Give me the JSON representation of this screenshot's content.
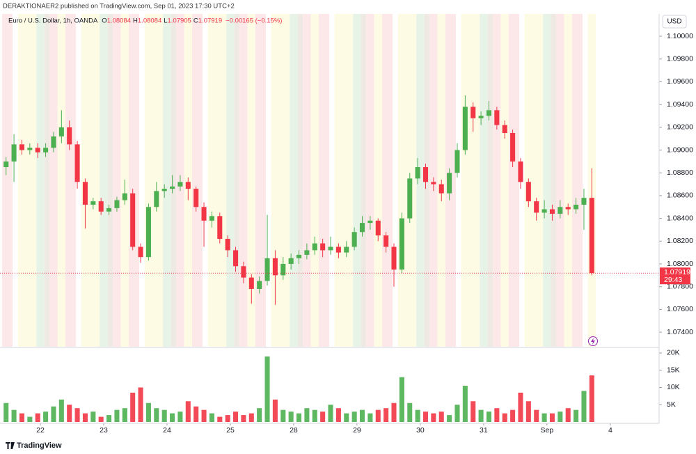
{
  "header": {
    "publisher": "DERAKTIONAER2 published on TradingView.com, Sep 01, 2023 17:30 UTC+2"
  },
  "legend": {
    "symbol": "Euro / U.S. Dollar, 1h, OANDA",
    "ohlc": [
      {
        "label": "O",
        "value": "1.08084"
      },
      {
        "label": "H",
        "value": "1.08084"
      },
      {
        "label": "L",
        "value": "1.07905"
      },
      {
        "label": "C",
        "value": "1.07919"
      }
    ],
    "change": "−0.00165 (−0.15%)"
  },
  "currency": "USD",
  "footer": "TradingView",
  "chart_data": {
    "type": "candlestick",
    "up_color": "#4caf50",
    "down_color": "#f23645",
    "x": [
      11,
      14,
      17,
      20,
      23,
      26,
      29,
      32,
      35,
      38,
      41,
      44,
      47,
      50,
      53,
      56,
      59,
      62,
      65,
      68,
      71,
      74,
      77,
      80,
      83,
      86,
      89,
      92,
      95,
      98,
      101,
      104,
      107,
      110,
      113,
      116,
      119,
      122,
      125,
      128,
      131,
      134,
      137,
      140,
      143,
      146,
      149,
      152,
      155,
      158,
      161,
      164,
      167,
      170,
      173,
      176,
      179,
      182,
      185,
      188,
      191,
      194,
      197,
      200,
      203,
      206,
      209,
      212,
      215,
      218,
      221,
      224,
      227,
      230,
      233
    ],
    "open": [
      1.0885,
      1.089,
      1.0905,
      1.09,
      1.0902,
      1.0898,
      1.0902,
      1.0912,
      1.092,
      1.0905,
      1.0872,
      1.0852,
      1.0855,
      1.0846,
      1.0849,
      1.0856,
      1.0862,
      1.0815,
      1.0806,
      1.085,
      1.0864,
      1.0866,
      1.0868,
      1.0872,
      1.0866,
      1.085,
      1.0838,
      1.0842,
      1.0822,
      1.0812,
      1.0798,
      1.0788,
      1.0778,
      1.0785,
      1.0805,
      1.079,
      1.08,
      1.0805,
      1.0808,
      1.0812,
      1.0818,
      1.0812,
      1.0815,
      1.081,
      1.0815,
      1.0828,
      1.0836,
      1.0838,
      1.0825,
      1.0815,
      1.0795,
      1.084,
      1.0875,
      1.0885,
      1.0872,
      1.087,
      1.0862,
      1.088,
      1.09,
      1.0938,
      1.0928,
      1.093,
      1.0935,
      1.0922,
      1.0915,
      1.089,
      1.0872,
      1.0855,
      1.0845,
      1.0848,
      1.0844,
      1.085,
      1.0848,
      1.0852,
      1.0858
    ],
    "high": [
      1.0894,
      1.0914,
      1.0909,
      1.0906,
      1.0906,
      1.0906,
      1.0916,
      1.0935,
      1.0926,
      1.0908,
      1.0875,
      1.0858,
      1.0858,
      1.0852,
      1.0859,
      1.0874,
      1.0866,
      1.0818,
      1.0853,
      1.0872,
      1.087,
      1.0878,
      1.0878,
      1.0876,
      1.0868,
      1.0854,
      1.0846,
      1.0845,
      1.0825,
      1.0815,
      1.0802,
      1.0791,
      1.0789,
      1.0843,
      1.0812,
      1.0806,
      1.0809,
      1.0812,
      1.0818,
      1.0824,
      1.0822,
      1.0824,
      1.0818,
      1.082,
      1.0832,
      1.0842,
      1.0842,
      1.084,
      1.0828,
      1.0818,
      1.0845,
      1.088,
      1.0893,
      1.0888,
      1.0876,
      1.0874,
      1.0884,
      1.0906,
      1.0948,
      1.0942,
      1.0934,
      1.0943,
      1.0938,
      1.0926,
      1.0918,
      1.0893,
      1.0875,
      1.0858,
      1.0856,
      1.0852,
      1.0856,
      1.0853,
      1.0858,
      1.0866,
      1.0884
    ],
    "low": [
      1.0878,
      1.0872,
      1.0896,
      1.0896,
      1.0893,
      1.0894,
      1.0898,
      1.0906,
      1.09,
      1.0866,
      1.0831,
      1.0848,
      1.0843,
      1.0843,
      1.0846,
      1.0852,
      1.0812,
      1.0801,
      1.0803,
      1.0846,
      1.0858,
      1.0862,
      1.0864,
      1.0856,
      1.0846,
      1.0815,
      1.0832,
      1.0818,
      1.0806,
      1.0793,
      1.0783,
      1.0765,
      1.0774,
      1.0781,
      1.0764,
      1.0786,
      1.0795,
      1.08,
      1.0804,
      1.0808,
      1.0806,
      1.0808,
      1.0805,
      1.0806,
      1.0812,
      1.0824,
      1.083,
      1.082,
      1.081,
      1.078,
      1.0792,
      1.0836,
      1.087,
      1.0866,
      1.0864,
      1.0855,
      1.0856,
      1.0876,
      1.0896,
      1.0916,
      1.0922,
      1.0926,
      1.0918,
      1.091,
      1.0885,
      1.0866,
      1.085,
      1.0838,
      1.084,
      1.0838,
      1.084,
      1.0843,
      1.0844,
      1.083,
      1.079
    ],
    "close": [
      1.089,
      1.0905,
      1.09,
      1.0902,
      1.0898,
      1.0902,
      1.0912,
      1.092,
      1.0905,
      1.0872,
      1.0852,
      1.0855,
      1.0846,
      1.0849,
      1.0856,
      1.0862,
      1.0815,
      1.0806,
      1.085,
      1.0864,
      1.0866,
      1.0868,
      1.0872,
      1.0866,
      1.085,
      1.0838,
      1.0842,
      1.0822,
      1.0812,
      1.0798,
      1.0788,
      1.0778,
      1.0785,
      1.0805,
      1.079,
      1.08,
      1.0805,
      1.0808,
      1.0812,
      1.0818,
      1.0812,
      1.0815,
      1.081,
      1.0815,
      1.0828,
      1.0836,
      1.0838,
      1.0825,
      1.0815,
      1.0795,
      1.084,
      1.0875,
      1.0885,
      1.0872,
      1.087,
      1.0862,
      1.088,
      1.09,
      1.0938,
      1.0928,
      1.093,
      1.0935,
      1.0922,
      1.0915,
      1.089,
      1.0872,
      1.0855,
      1.0845,
      1.0848,
      1.0844,
      1.085,
      1.0848,
      1.0852,
      1.0858,
      1.0792
    ],
    "volume": [
      5500,
      3500,
      2500,
      1500,
      2500,
      3000,
      4500,
      6500,
      5000,
      4000,
      2500,
      3000,
      1500,
      2000,
      3500,
      4000,
      8500,
      10000,
      5500,
      4000,
      3500,
      2500,
      3000,
      6000,
      4500,
      3500,
      2500,
      1500,
      2000,
      3000,
      2000,
      2500,
      4000,
      19000,
      6500,
      3500,
      3000,
      2500,
      4000,
      3500,
      3000,
      5000,
      4000,
      2500,
      3000,
      3500,
      2500,
      3500,
      4000,
      5500,
      13000,
      5500,
      3500,
      3000,
      2500,
      3000,
      2000,
      5000,
      10500,
      6000,
      3500,
      3000,
      4000,
      2500,
      3500,
      8500,
      6000,
      3500,
      2500,
      2500,
      3000,
      4000,
      3500,
      9000,
      13500
    ],
    "xlim": [
      8.7,
      258.5
    ],
    "xticks": [
      {
        "value": 24,
        "label": "22"
      },
      {
        "value": 48,
        "label": "23"
      },
      {
        "value": 72,
        "label": "24"
      },
      {
        "value": 96,
        "label": "25"
      },
      {
        "value": 120,
        "label": "28"
      },
      {
        "value": 144,
        "label": "29"
      },
      {
        "value": 168,
        "label": "30"
      },
      {
        "value": 192,
        "label": "31"
      },
      {
        "value": 216,
        "label": "Sep"
      },
      {
        "value": 240,
        "label": "4"
      }
    ],
    "ylim": [
      1.07272,
      1.10196
    ],
    "yticks": [
      {
        "value": 1.074,
        "label": "1.07400"
      },
      {
        "value": 1.076,
        "label": "1.07600"
      },
      {
        "value": 1.078,
        "label": "1.07800"
      },
      {
        "value": 1.08,
        "label": "1.08000"
      },
      {
        "value": 1.082,
        "label": "1.08200"
      },
      {
        "value": 1.084,
        "label": "1.08400"
      },
      {
        "value": 1.086,
        "label": "1.08600"
      },
      {
        "value": 1.088,
        "label": "1.08800"
      },
      {
        "value": 1.09,
        "label": "1.09000"
      },
      {
        "value": 1.092,
        "label": "1.09200"
      },
      {
        "value": 1.094,
        "label": "1.09400"
      },
      {
        "value": 1.096,
        "label": "1.09600"
      },
      {
        "value": 1.098,
        "label": "1.09800"
      },
      {
        "value": 1.1,
        "label": "1.10000"
      }
    ],
    "volume_ylim": [
      0,
      21400
    ],
    "volume_yticks": [
      {
        "value": 5000,
        "label": "5K"
      },
      {
        "value": 10000,
        "label": "10K"
      },
      {
        "value": 15000,
        "label": "15K"
      },
      {
        "value": 20000,
        "label": "20K"
      }
    ],
    "last_price": {
      "value": 1.07919,
      "label": "1.07919",
      "countdown": "29:43"
    }
  }
}
